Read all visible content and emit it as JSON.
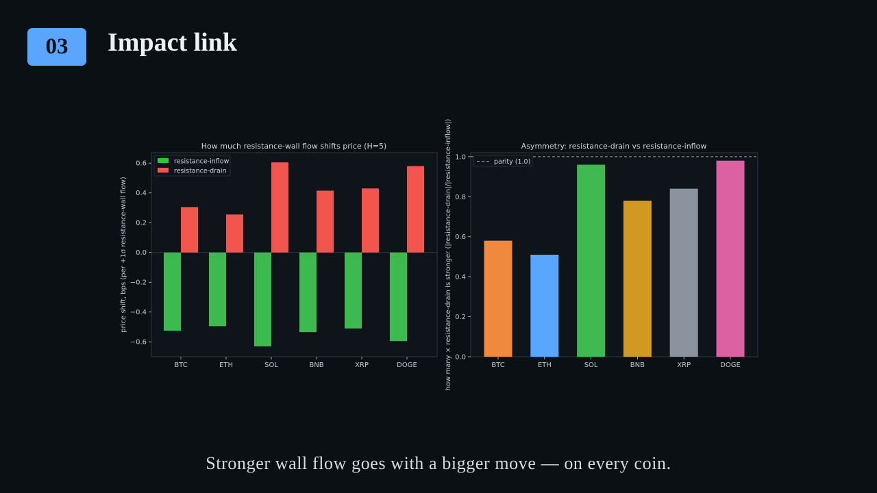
{
  "slide": {
    "number": "03",
    "title": "Impact link",
    "caption": "Stronger wall flow goes with a bigger move — on every coin."
  },
  "colors": {
    "background": "#0b1015",
    "accent": "#5aa6ff",
    "inflow": "#3cb94f",
    "drain": "#f2544e"
  },
  "chart_data": [
    {
      "type": "bar",
      "title": "How much resistance-wall flow shifts price (H=5)",
      "xlabel": "",
      "ylabel": "price shift, bps (per +1σ resistance-wall flow)",
      "categories": [
        "BTC",
        "ETH",
        "SOL",
        "BNB",
        "XRP",
        "DOGE"
      ],
      "series": [
        {
          "name": "resistance-inflow",
          "color": "#3cb94f",
          "values": [
            -0.525,
            -0.495,
            -0.63,
            -0.535,
            -0.51,
            -0.595
          ]
        },
        {
          "name": "resistance-drain",
          "color": "#f2544e",
          "values": [
            0.305,
            0.255,
            0.605,
            0.415,
            0.43,
            0.58
          ]
        }
      ],
      "ylim": [
        -0.7,
        0.67
      ],
      "yticks": [
        -0.6,
        -0.4,
        -0.2,
        0.0,
        0.2,
        0.4,
        0.6
      ],
      "ytick_labels": [
        "−0.6",
        "−0.4",
        "−0.2",
        "0.0",
        "0.2",
        "0.4",
        "0.6"
      ],
      "legend": "top-left",
      "grid": false
    },
    {
      "type": "bar",
      "title": "Asymmetry: resistance-drain vs resistance-inflow",
      "xlabel": "",
      "ylabel": "how many × resistance-drain is stronger (|resistance-drain|/|resistance-inflow|)",
      "categories": [
        "BTC",
        "ETH",
        "SOL",
        "BNB",
        "XRP",
        "DOGE"
      ],
      "values": [
        0.58,
        0.51,
        0.96,
        0.78,
        0.84,
        0.98
      ],
      "colors": [
        "#f0883e",
        "#58a6ff",
        "#3fb950",
        "#d29922",
        "#8b949e",
        "#db61a2"
      ],
      "reference_line": {
        "label": "parity (1.0)",
        "value": 1.0
      },
      "ylim": [
        0,
        1.02
      ],
      "yticks": [
        0.0,
        0.2,
        0.4,
        0.6,
        0.8,
        1.0
      ],
      "ytick_labels": [
        "0.0",
        "0.2",
        "0.4",
        "0.6",
        "0.8",
        "1.0"
      ],
      "legend": "top-left",
      "grid": false
    }
  ]
}
